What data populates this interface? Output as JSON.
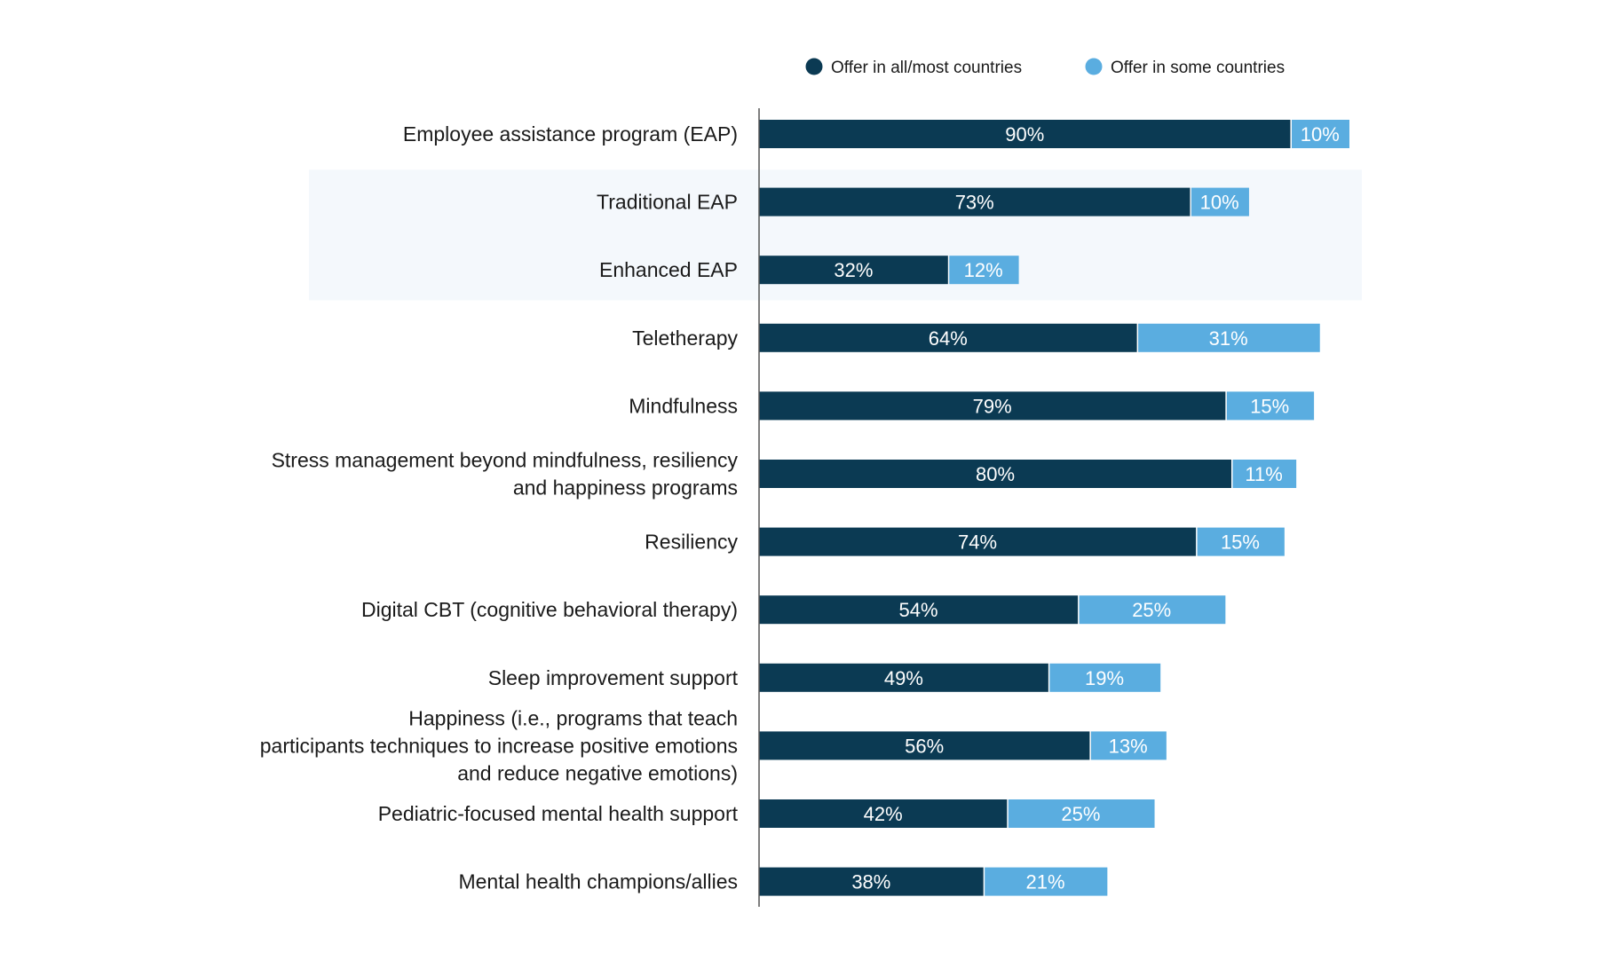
{
  "chart_data": {
    "type": "bar",
    "orientation": "horizontal",
    "stacked": true,
    "colors": {
      "all_most": "#0b3a53",
      "some": "#5aade0",
      "highlight_band": "#f4f8fc",
      "axis": "#555555"
    },
    "legend": {
      "placement": "top-right",
      "items": [
        {
          "name": "Offer in all/most countries",
          "color": "#0b3a53"
        },
        {
          "name": "Offer in some countries",
          "color": "#5aade0"
        }
      ]
    },
    "highlighted_categories": [
      "Traditional EAP",
      "Enhanced EAP"
    ],
    "categories": [
      [
        "Employee assistance program (EAP)"
      ],
      [
        "Traditional EAP"
      ],
      [
        "Enhanced EAP"
      ],
      [
        "Teletherapy"
      ],
      [
        "Mindfulness"
      ],
      [
        "Stress management beyond mindfulness, resiliency",
        "and happiness programs"
      ],
      [
        "Resiliency"
      ],
      [
        "Digital CBT (cognitive behavioral therapy)"
      ],
      [
        "Sleep improvement support"
      ],
      [
        "Happiness (i.e., programs that teach",
        "participants techniques to increase positive emotions",
        "and reduce negative emotions)"
      ],
      [
        "Pediatric-focused mental health support"
      ],
      [
        "Mental health champions/allies"
      ]
    ],
    "series": [
      {
        "name": "Offer in all/most countries",
        "values": [
          90,
          73,
          32,
          64,
          79,
          80,
          74,
          54,
          49,
          56,
          42,
          38
        ],
        "labels": [
          "90%",
          "73%",
          "32%",
          "64%",
          "79%",
          "80%",
          "74%",
          "54%",
          "49%",
          "56%",
          "42%",
          "38%"
        ]
      },
      {
        "name": "Offer in some countries",
        "values": [
          10,
          10,
          12,
          31,
          15,
          11,
          15,
          25,
          19,
          13,
          25,
          21
        ],
        "labels": [
          "10%",
          "10%",
          "12%",
          "31%",
          "15%",
          "11%",
          "15%",
          "25%",
          "19%",
          "13%",
          "25%",
          "21%"
        ]
      }
    ],
    "xlim": [
      0,
      100
    ],
    "title": "",
    "xlabel": "",
    "ylabel": ""
  }
}
